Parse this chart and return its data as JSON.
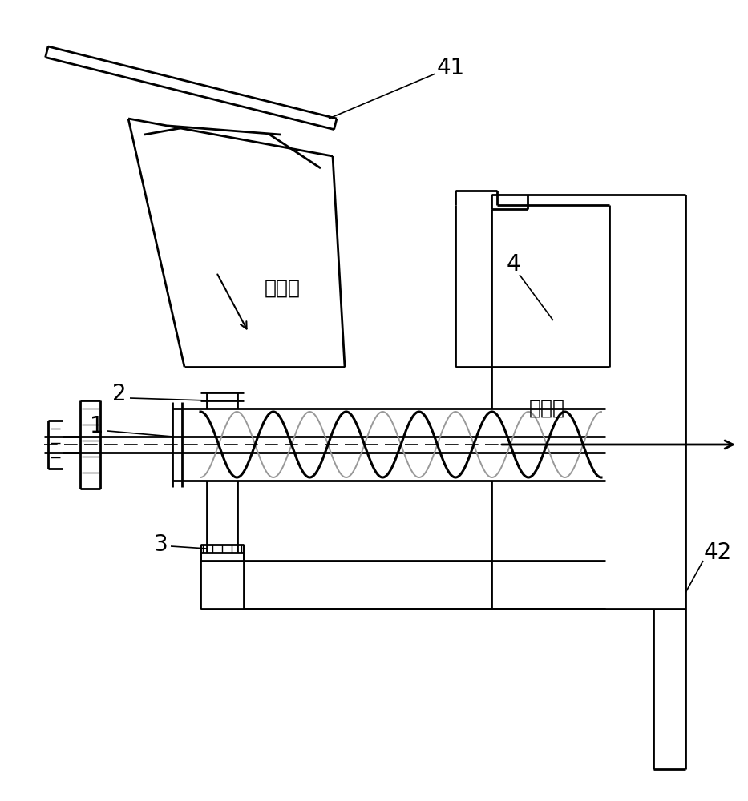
{
  "bg_color": "#ffffff",
  "line_color": "#000000",
  "label_41": "41",
  "label_4": "4",
  "label_42": "42",
  "label_1": "1",
  "label_2": "2",
  "label_3": "3",
  "text_material_in": "物料进",
  "text_material_out": "物料出",
  "figsize": [
    9.33,
    10.0
  ],
  "dpi": 100
}
